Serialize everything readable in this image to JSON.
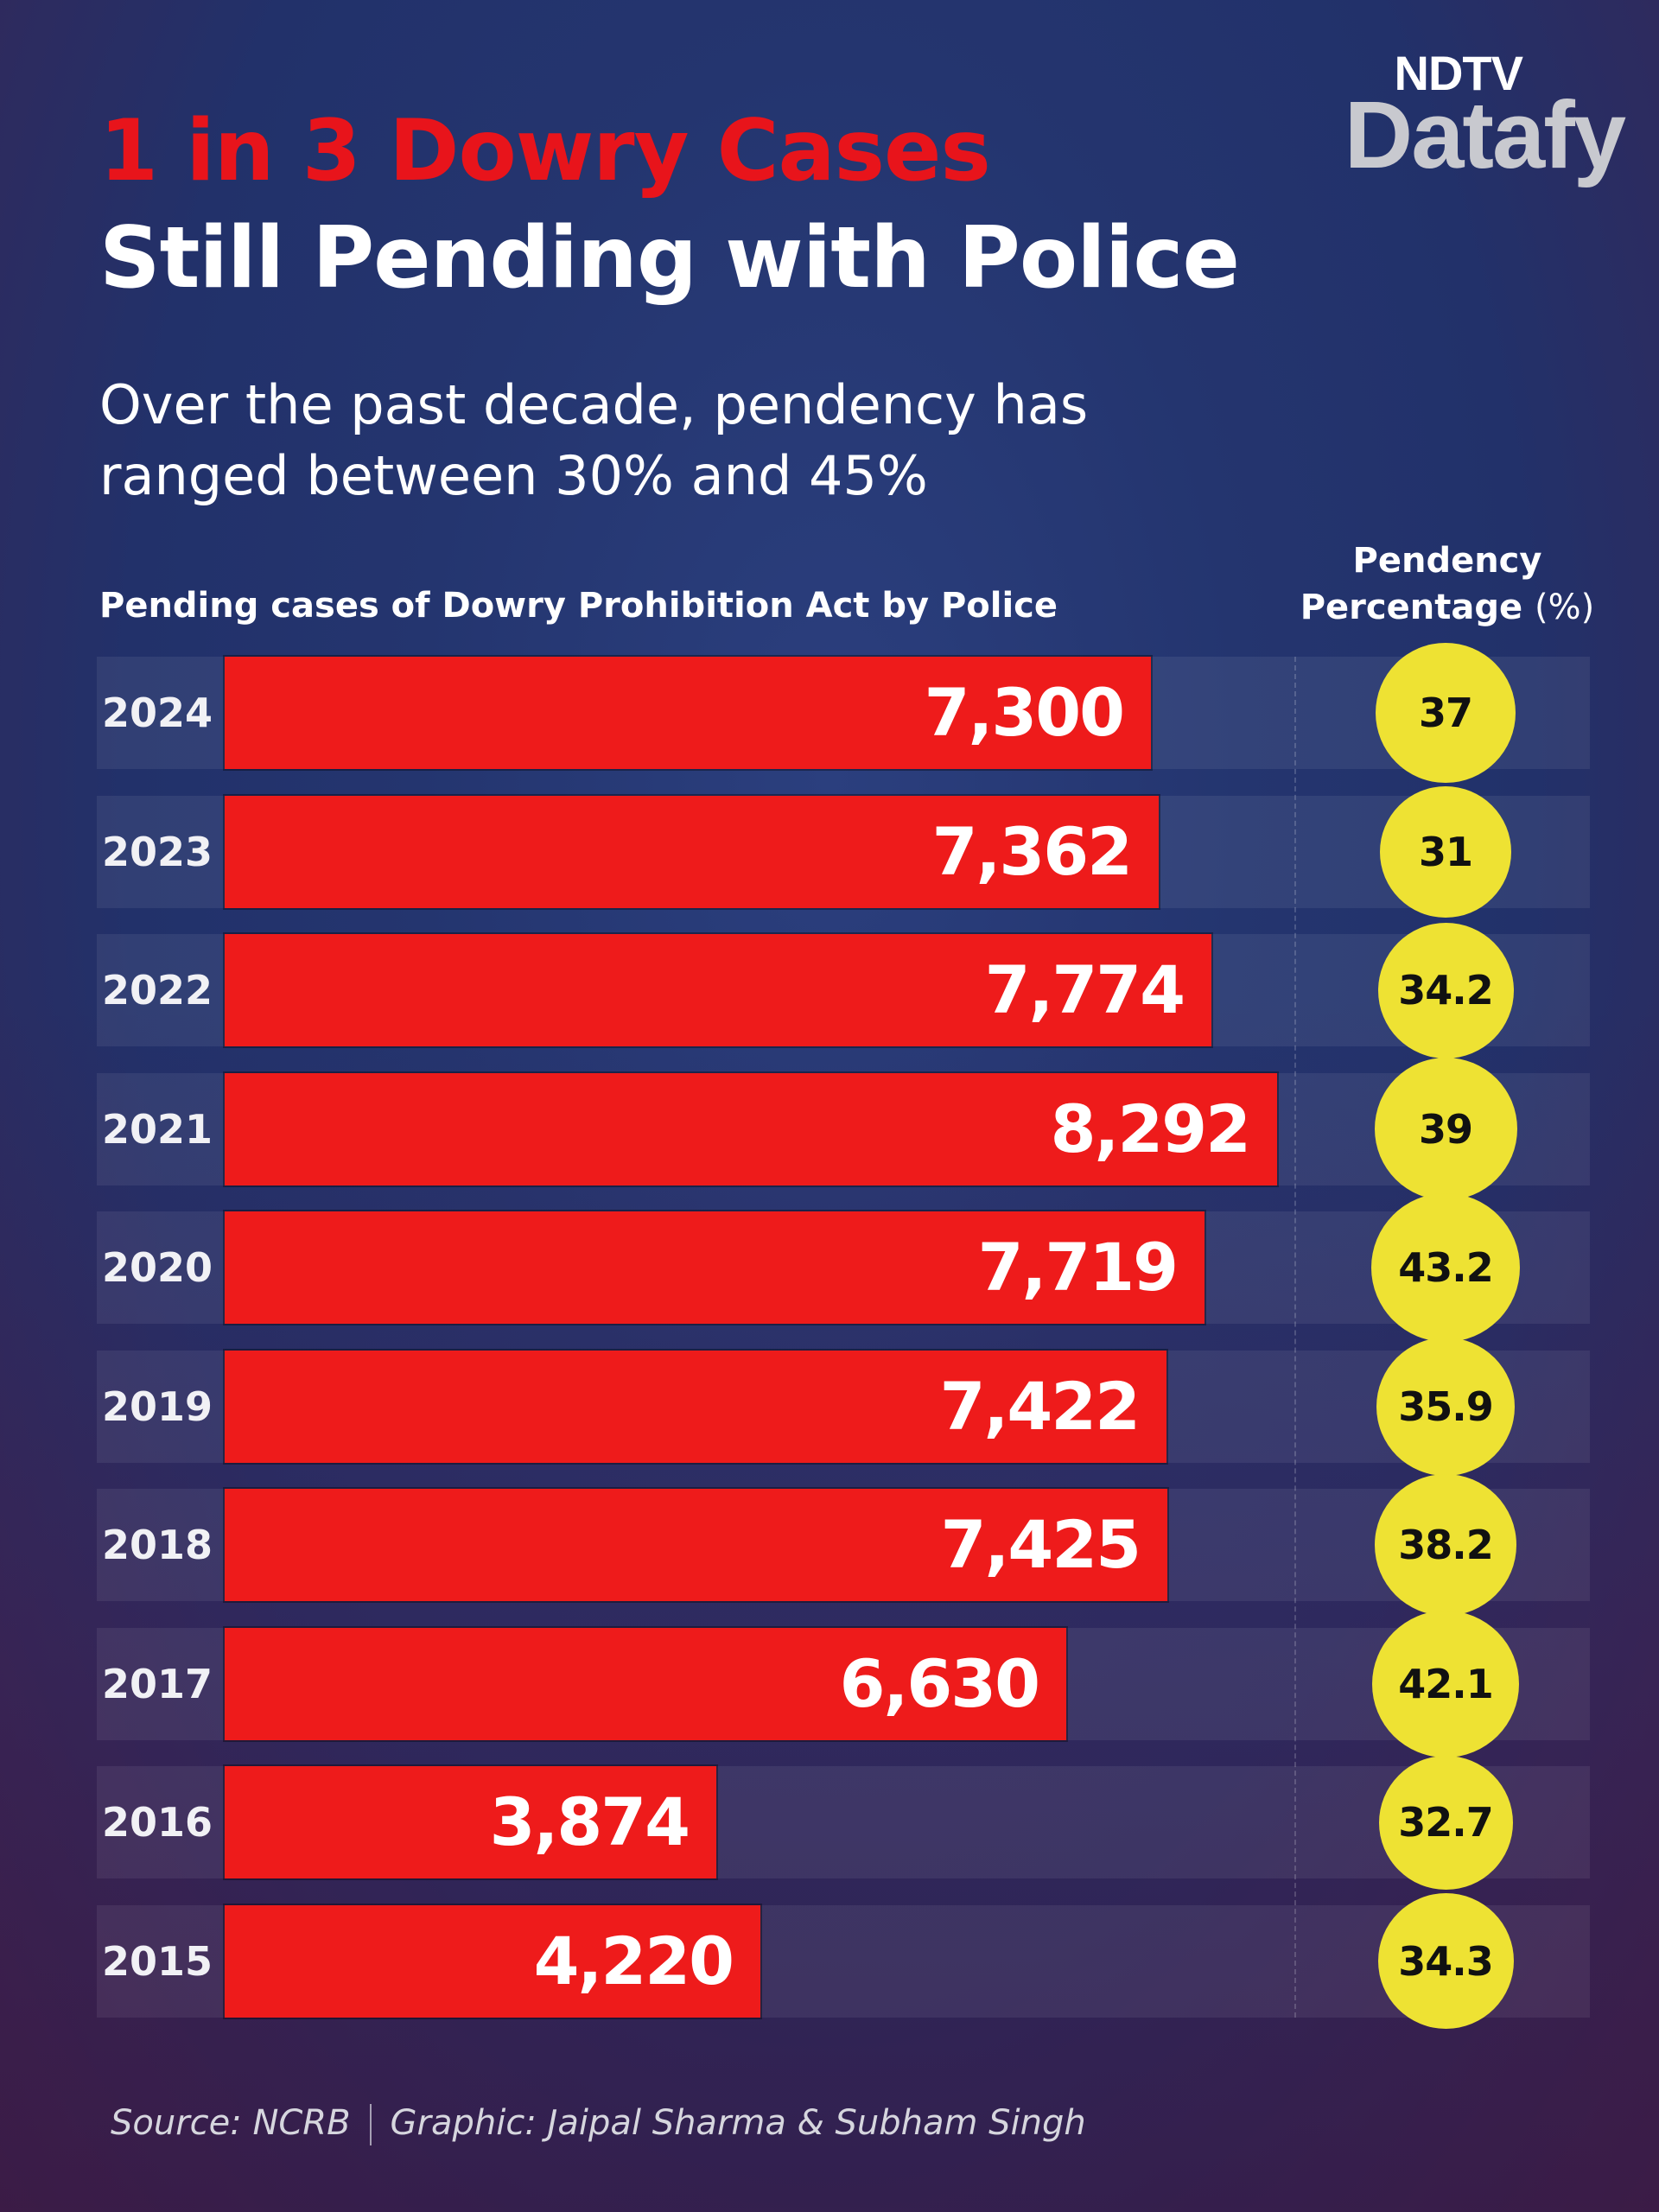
{
  "brand": {
    "top": "NDTV",
    "bottom": "Datafy"
  },
  "title": {
    "line1": "1 in 3 Dowry Cases",
    "line2": "Still Pending with Police"
  },
  "subtitle": "Over the past decade, pendency has ranged between 30% and 45%",
  "chart_label": "Pending cases of Dowry Prohibition Act by Police",
  "pct_header": {
    "line1": "Pendency",
    "line2": "Percentage",
    "unit": "(%)"
  },
  "colors": {
    "bar": "#ee1b1b",
    "bubble": "#eee233",
    "title_accent": "#e8141b"
  },
  "chart_data": {
    "type": "bar",
    "orientation": "horizontal",
    "title": "Pending cases of Dowry Prohibition Act by Police",
    "categories": [
      "2024",
      "2023",
      "2022",
      "2021",
      "2020",
      "2019",
      "2018",
      "2017",
      "2016",
      "2015"
    ],
    "values": [
      7300,
      7362,
      7774,
      8292,
      7719,
      7422,
      7425,
      6630,
      3874,
      4220
    ],
    "value_labels": [
      "7,300",
      "7,362",
      "7,774",
      "8,292",
      "7,719",
      "7,422",
      "7,425",
      "6,630",
      "3,874",
      "4,220"
    ],
    "pendency_percentage": [
      "37",
      "31",
      "34.2",
      "39",
      "43.2",
      "35.9",
      "38.2",
      "42.1",
      "32.7",
      "34.3"
    ],
    "xlim": [
      0,
      8292
    ],
    "grid": false
  },
  "source": {
    "source": "Source: NCRB",
    "credit": "Graphic: Jaipal Sharma & Subham Singh"
  }
}
